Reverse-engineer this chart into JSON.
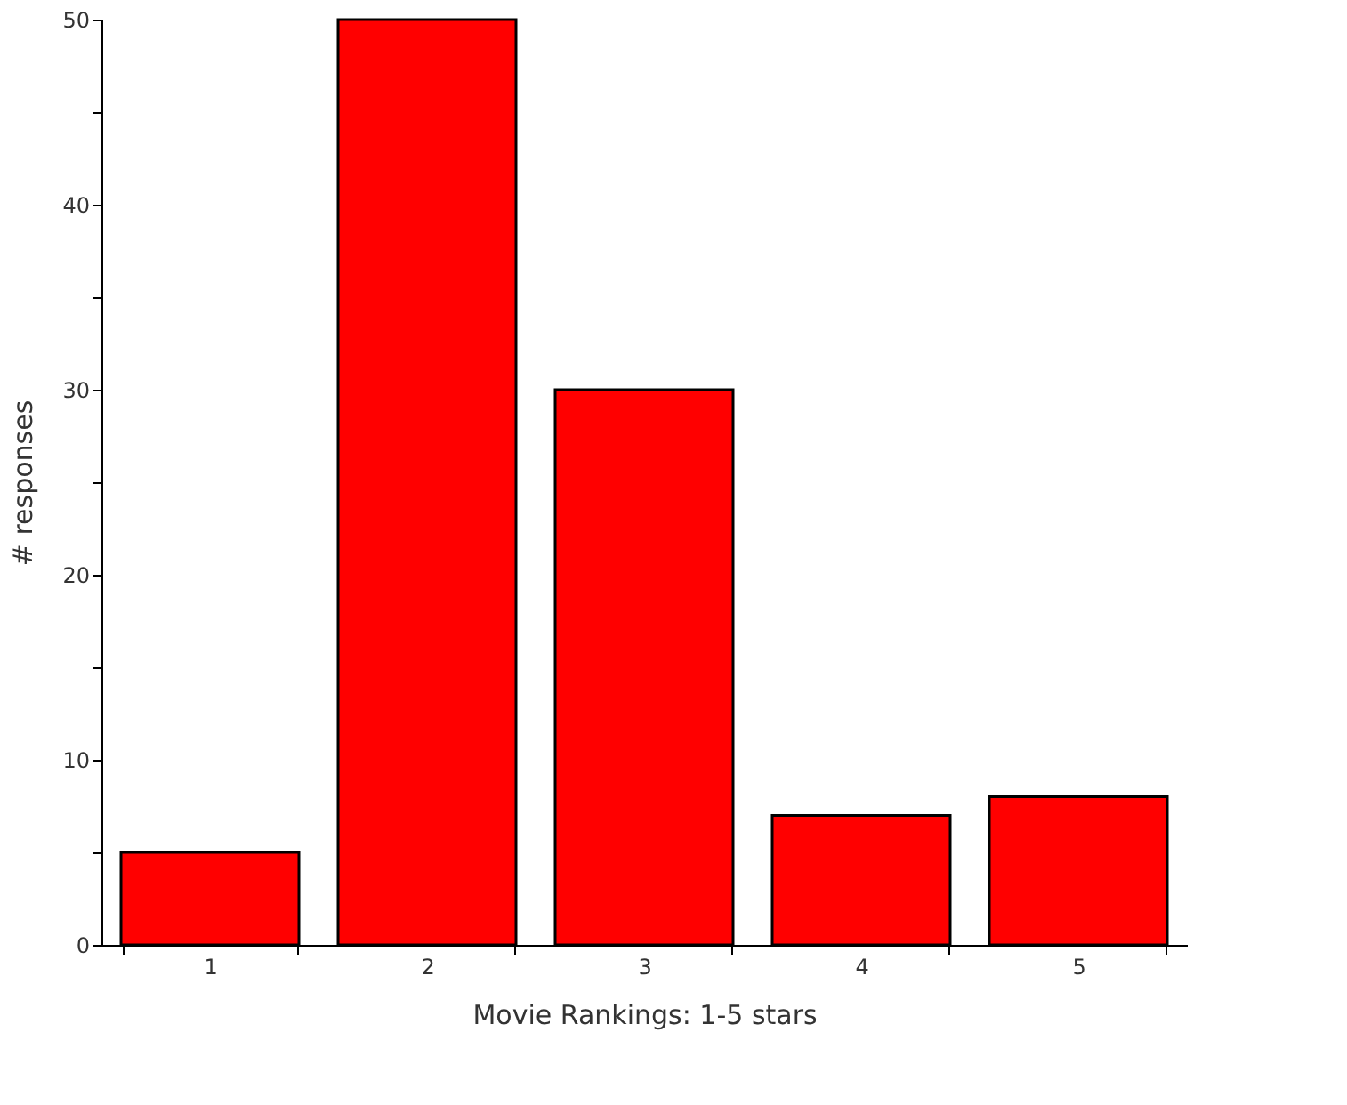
{
  "chart_data": {
    "type": "bar",
    "xlabel": "Movie Rankings: 1-5 stars",
    "ylabel": "# responses",
    "categories": [
      "1",
      "2",
      "3",
      "4",
      "5"
    ],
    "values": [
      5,
      50,
      30,
      7,
      8
    ],
    "color": "#ff0000",
    "ylim": [
      0,
      50
    ],
    "yticks": [
      0,
      {
        "value": 5,
        "label": null
      },
      10,
      {
        "value": 15,
        "label": null
      },
      20,
      {
        "value": 25,
        "label": null
      },
      30,
      {
        "value": 35,
        "label": null
      },
      40,
      {
        "value": 45,
        "label": null
      },
      50
    ],
    "grid": false
  }
}
